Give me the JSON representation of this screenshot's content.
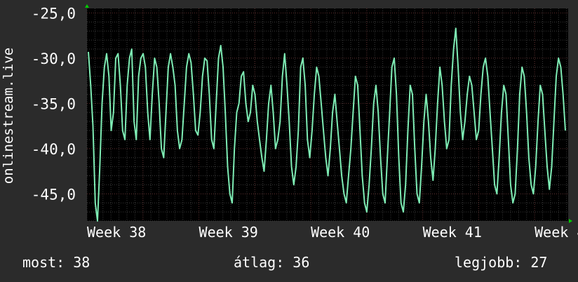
{
  "colors": {
    "background": "#2b2b2b",
    "plot_background": "#000000",
    "line": "#7eecb4",
    "minor_grid": "#3a3a3a",
    "major_grid": "#5a2a2a",
    "axis_arrow": "#00cc00",
    "text": "#ffffff"
  },
  "chart_data": {
    "type": "line",
    "ylabel": "onlinestream.live",
    "ylim": [
      -48,
      -24.5
    ],
    "y_ticks": [
      -25,
      -30,
      -35,
      -40,
      -45
    ],
    "y_tick_labels": [
      "-25,0",
      "-30,0",
      "-35,0",
      "-40,0",
      "-45,0"
    ],
    "x_ticks": [
      0,
      1,
      2,
      3,
      4
    ],
    "x_tick_labels": [
      "Week 38",
      "Week 39",
      "Week 40",
      "Week 41",
      "Week 4"
    ],
    "xlim": [
      0,
      4.3
    ],
    "grid": true,
    "series": [
      {
        "values": [
          -29.3,
          -33,
          -37.5,
          -46,
          -48,
          -42,
          -35,
          -31,
          -29.5,
          -32,
          -38,
          -36,
          -30,
          -29.5,
          -33,
          -38,
          -39,
          -33,
          -30,
          -29,
          -37,
          -39,
          -32,
          -30,
          -29.5,
          -31,
          -36,
          -39,
          -34,
          -30,
          -31,
          -35,
          -40,
          -41,
          -36,
          -31,
          -29.5,
          -31,
          -33,
          -38,
          -40,
          -39,
          -35,
          -31,
          -29.5,
          -30.5,
          -34,
          -38,
          -38.5,
          -36,
          -32,
          -30,
          -30.3,
          -34,
          -39,
          -40,
          -35,
          -30,
          -28.6,
          -31,
          -36,
          -42,
          -45,
          -46,
          -40,
          -36,
          -35,
          -32,
          -31.5,
          -35,
          -37,
          -36,
          -33,
          -34,
          -37,
          -39,
          -41,
          -42.5,
          -39,
          -35,
          -33,
          -36,
          -40,
          -39,
          -37,
          -32,
          -29.5,
          -33,
          -37,
          -42,
          -44,
          -42,
          -38,
          -31,
          -30,
          -33,
          -39,
          -41,
          -38,
          -34,
          -31,
          -32,
          -35,
          -38,
          -41,
          -43,
          -40,
          -36,
          -34,
          -37,
          -40,
          -43,
          -45,
          -46,
          -43,
          -40,
          -36,
          -32,
          -33,
          -38,
          -43,
          -46,
          -47,
          -44,
          -40,
          -35,
          -33,
          -36,
          -41,
          -45,
          -46,
          -41,
          -36,
          -31,
          -30,
          -34,
          -41,
          -46,
          -47,
          -44,
          -38,
          -33,
          -34,
          -40,
          -45,
          -46,
          -42,
          -37,
          -34,
          -37,
          -41,
          -43.5,
          -40,
          -35,
          -31,
          -33,
          -37,
          -40,
          -39,
          -33,
          -29,
          -26.7,
          -31,
          -36,
          -39,
          -37,
          -34,
          -32,
          -33,
          -36,
          -39,
          -38,
          -34,
          -31,
          -30,
          -32,
          -36,
          -40,
          -44,
          -45,
          -41,
          -36,
          -33,
          -34,
          -39,
          -44,
          -46,
          -45,
          -40,
          -34,
          -31,
          -32,
          -36,
          -41,
          -44,
          -45,
          -42,
          -37,
          -33,
          -34,
          -38,
          -42,
          -44.5,
          -42,
          -37,
          -32,
          -30,
          -31,
          -34,
          -38
        ]
      }
    ]
  },
  "stats": {
    "now": "most: 38",
    "avg": "átlag: 36",
    "best": "legjobb: 27"
  }
}
